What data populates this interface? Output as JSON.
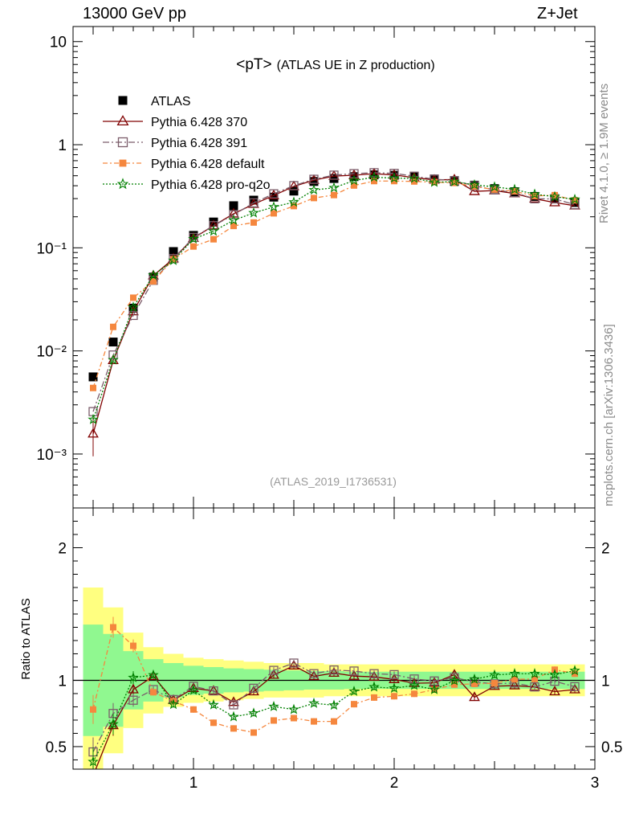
{
  "header": {
    "energy": "13000 GeV pp",
    "process": "Z+Jet"
  },
  "side_labels": {
    "rivet": "Rivet 4.1.0, ≥ 1.9M events",
    "mcplots": "mcplots.cern.ch [arXiv:1306.3436]"
  },
  "chart_data": {
    "type": "scatter",
    "title_main": "<pT>",
    "title_sub": "(ATLAS UE in Z production)",
    "analysis_id": "(ATLAS_2019_I1736531)",
    "ratio_ylabel": "Ratio to ATLAS",
    "xlim": [
      0.4,
      3.0
    ],
    "ylim_main": [
      0.0003,
      14
    ],
    "yscale_main": "log",
    "ylim_ratio": [
      0.33,
      2.3
    ],
    "x_ticks": [
      "1",
      "2",
      "3"
    ],
    "main_y_ticks": [
      {
        "value": 10,
        "label": "10"
      },
      {
        "value": 1,
        "label": "1"
      },
      {
        "value": 0.1,
        "label": "10⁻¹"
      },
      {
        "value": 0.01,
        "label": "10⁻²"
      },
      {
        "value": 0.001,
        "label": "10⁻³"
      }
    ],
    "ratio_y_ticks": [
      "0.5",
      "1",
      "2"
    ],
    "legend_position": "top-left",
    "x": [
      0.5,
      0.6,
      0.7,
      0.8,
      0.9,
      1.0,
      1.1,
      1.2,
      1.3,
      1.4,
      1.5,
      1.6,
      1.7,
      1.8,
      1.9,
      2.0,
      2.1,
      2.2,
      2.3,
      2.4,
      2.5,
      2.6,
      2.7,
      2.8,
      2.9
    ],
    "band_inner": [
      0.42,
      0.35,
      0.22,
      0.16,
      0.13,
      0.11,
      0.1,
      0.09,
      0.085,
      0.08,
      0.075,
      0.07,
      0.07,
      0.065,
      0.065,
      0.065,
      0.065,
      0.065,
      0.065,
      0.065,
      0.065,
      0.065,
      0.065,
      0.065,
      0.065
    ],
    "band_outer": [
      0.7,
      0.55,
      0.36,
      0.25,
      0.2,
      0.17,
      0.16,
      0.15,
      0.14,
      0.13,
      0.13,
      0.13,
      0.12,
      0.12,
      0.12,
      0.12,
      0.12,
      0.12,
      0.12,
      0.12,
      0.12,
      0.12,
      0.12,
      0.12,
      0.12
    ],
    "series": [
      {
        "name": "ATLAS",
        "color": "#000000",
        "values": [
          0.0056,
          0.0122,
          0.026,
          0.052,
          0.092,
          0.132,
          0.178,
          0.256,
          0.29,
          0.31,
          0.355,
          0.44,
          0.47,
          0.49,
          0.51,
          0.505,
          0.49,
          0.465,
          0.44,
          0.405,
          0.375,
          0.35,
          0.315,
          0.3,
          0.275
        ],
        "ratio": [
          1.0,
          1.0,
          1.0,
          1.0,
          1.0,
          1.0,
          1.0,
          1.0,
          1.0,
          1.0,
          1.0,
          1.0,
          1.0,
          1.0,
          1.0,
          1.0,
          1.0,
          1.0,
          1.0,
          1.0,
          1.0,
          1.0,
          1.0,
          1.0,
          1.0
        ]
      },
      {
        "name": "Pythia 6.428 370",
        "color": "#800000",
        "marker": "triangle",
        "values": [
          0.00157,
          0.0081,
          0.0241,
          0.0537,
          0.0784,
          0.124,
          0.164,
          0.214,
          0.265,
          0.322,
          0.394,
          0.453,
          0.496,
          0.506,
          0.523,
          0.509,
          0.479,
          0.456,
          0.459,
          0.353,
          0.359,
          0.336,
          0.299,
          0.275,
          0.256
        ],
        "ratio": [
          0.28,
          0.66,
          0.93,
          1.03,
          0.85,
          0.94,
          0.92,
          0.835,
          0.915,
          1.04,
          1.11,
          1.03,
          1.055,
          1.032,
          1.026,
          1.007,
          0.978,
          0.981,
          1.042,
          0.872,
          0.956,
          0.96,
          0.95,
          0.915,
          0.93
        ]
      },
      {
        "name": "Pythia 6.428 391",
        "color": "#7b5c6a",
        "marker": "square",
        "values": [
          0.00258,
          0.00913,
          0.0221,
          0.0484,
          0.0786,
          0.126,
          0.164,
          0.209,
          0.273,
          0.334,
          0.401,
          0.462,
          0.507,
          0.524,
          0.535,
          0.527,
          0.495,
          0.463,
          0.449,
          0.4,
          0.365,
          0.343,
          0.299,
          0.298,
          0.262
        ],
        "ratio": [
          0.46,
          0.75,
          0.85,
          0.93,
          0.855,
          0.955,
          0.92,
          0.815,
          0.94,
          1.075,
          1.13,
          1.05,
          1.078,
          1.07,
          1.05,
          1.043,
          1.01,
          0.995,
          1.02,
          0.988,
          0.973,
          0.98,
          0.95,
          0.993,
          0.952
        ]
      },
      {
        "name": "Pythia 6.428 default",
        "color": "#f5873e",
        "marker": "filled-square",
        "values": [
          0.00437,
          0.0171,
          0.0328,
          0.0473,
          0.0776,
          0.103,
          0.121,
          0.163,
          0.176,
          0.216,
          0.254,
          0.304,
          0.325,
          0.402,
          0.444,
          0.444,
          0.44,
          0.433,
          0.426,
          0.394,
          0.367,
          0.353,
          0.318,
          0.324,
          0.289
        ],
        "ratio": [
          0.78,
          1.4,
          1.26,
          0.91,
          0.843,
          0.78,
          0.68,
          0.637,
          0.606,
          0.697,
          0.715,
          0.69,
          0.69,
          0.82,
          0.87,
          0.88,
          0.898,
          0.93,
          0.968,
          0.973,
          0.978,
          1.008,
          1.01,
          1.08,
          1.05
        ]
      },
      {
        "name": "Pythia 6.428 pro-q2o",
        "color": "#008000",
        "marker": "star",
        "values": [
          0.00216,
          0.00818,
          0.0265,
          0.0541,
          0.0753,
          0.122,
          0.145,
          0.185,
          0.218,
          0.249,
          0.277,
          0.364,
          0.382,
          0.449,
          0.484,
          0.474,
          0.471,
          0.432,
          0.438,
          0.408,
          0.39,
          0.368,
          0.331,
          0.313,
          0.295
        ],
        "ratio": [
          0.386,
          0.67,
          1.02,
          1.04,
          0.818,
          0.925,
          0.815,
          0.725,
          0.752,
          0.802,
          0.78,
          0.827,
          0.812,
          0.917,
          0.95,
          0.94,
          0.962,
          0.93,
          0.997,
          1.008,
          1.04,
          1.05,
          1.05,
          1.043,
          1.073
        ]
      }
    ]
  }
}
